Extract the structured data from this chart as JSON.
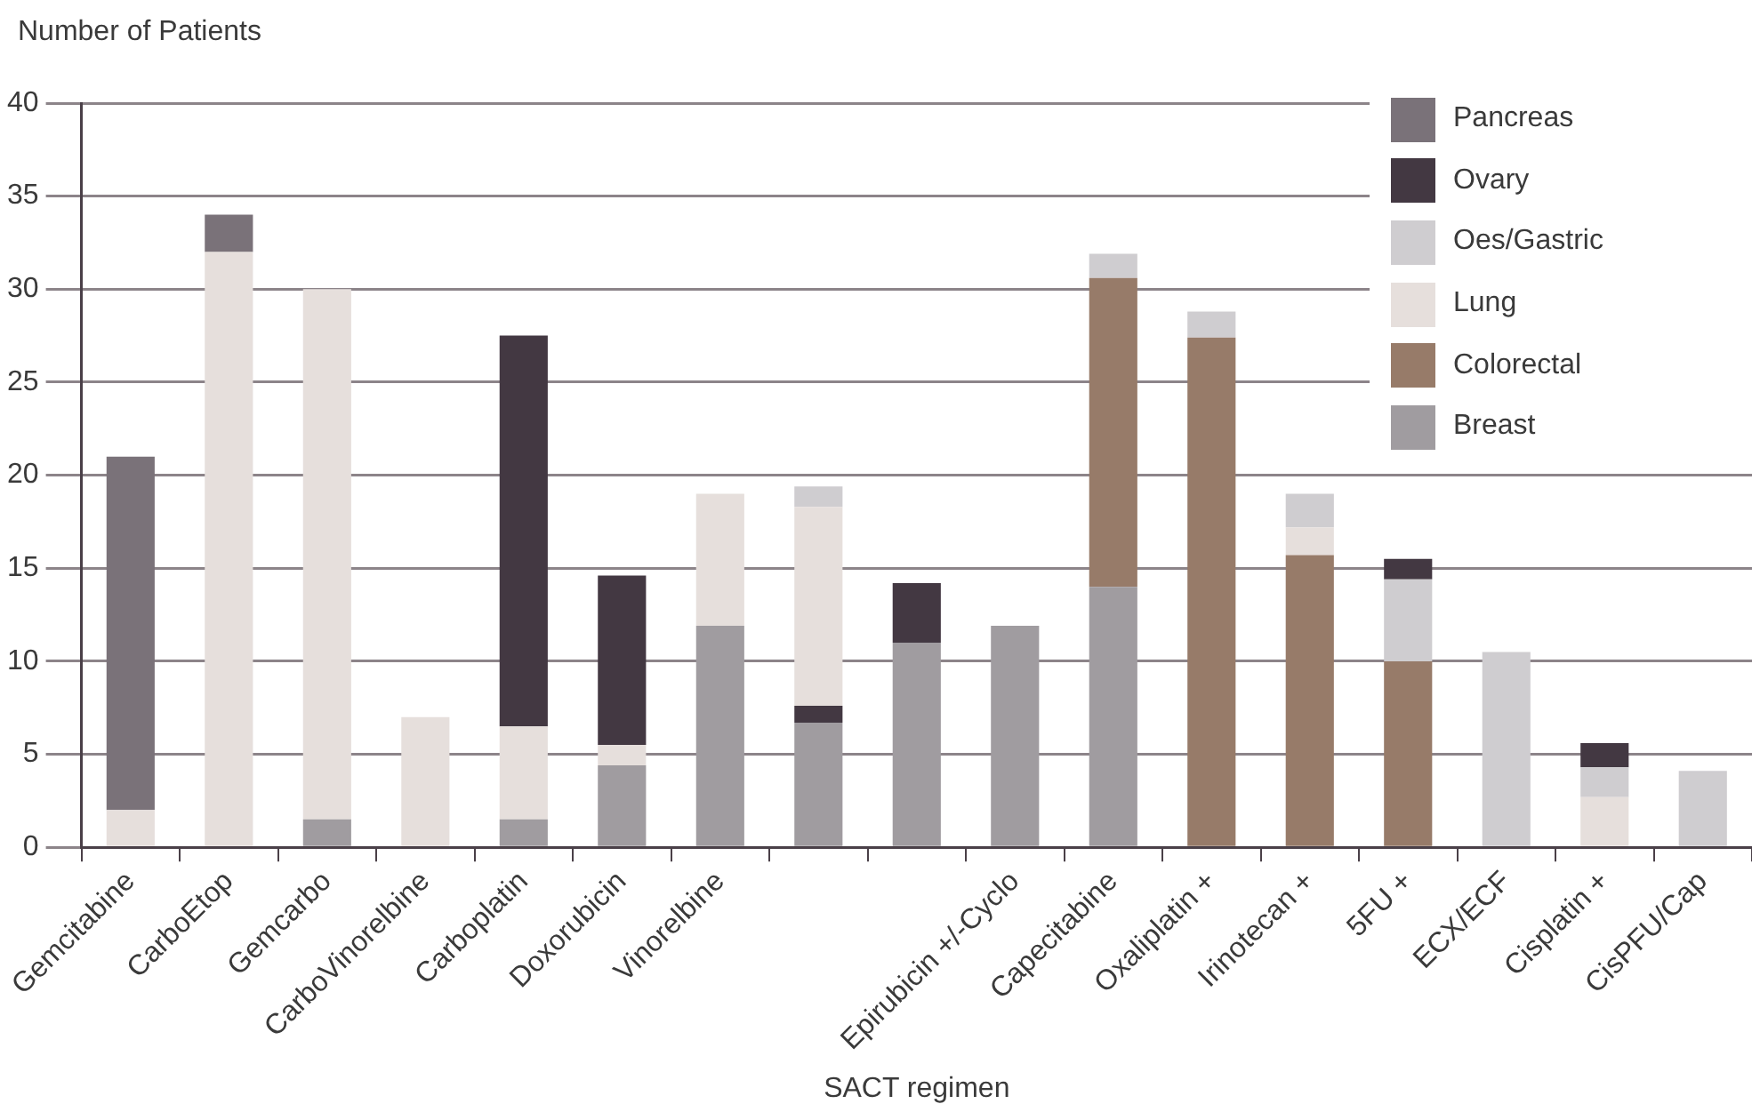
{
  "chart_data": {
    "type": "bar",
    "stacked": true,
    "ylabel": "Number of Patients",
    "xlabel": "SACT regimen",
    "categories": [
      "Gemcitabine",
      "CarboEtop",
      "Gemcarbo",
      "CarboVinorelbine",
      "Carboplatin",
      "Doxorubicin",
      "Vinorelbine",
      null,
      null,
      "Epirubicin +/-Cyclo",
      "Capecitabine",
      "Oxaliplatin +",
      "Irinotecan +",
      "5FU +",
      "ECX/ECF",
      "Cisplatin +",
      "CisPFU/Cap"
    ],
    "ylim": [
      0,
      40
    ],
    "yticks": [
      0,
      5,
      10,
      15,
      20,
      25,
      30,
      35,
      40
    ],
    "grid": "y",
    "legend": "top right",
    "series": [
      {
        "name": "Breast",
        "color": "#a09ca0",
        "values": [
          null,
          null,
          1.5,
          null,
          1.5,
          4.4,
          11.9,
          6.7,
          11,
          11.9,
          14,
          null,
          null,
          null,
          null,
          null,
          null
        ]
      },
      {
        "color": "#433842",
        "values": [
          null,
          null,
          null,
          null,
          null,
          null,
          null,
          0.9,
          null,
          null,
          null,
          null,
          null,
          null,
          null,
          null,
          null
        ]
      },
      {
        "name": "Colorectal",
        "color": "#977b69",
        "values": [
          null,
          null,
          null,
          null,
          null,
          null,
          null,
          null,
          null,
          null,
          16.6,
          27.4,
          15.7,
          10,
          null,
          null,
          null
        ]
      },
      {
        "name": "Lung",
        "color": "#e6dfdc",
        "values": [
          2,
          32,
          28.5,
          7,
          5,
          1.1,
          7.1,
          10.7,
          null,
          null,
          null,
          null,
          1.5,
          null,
          null,
          2.7,
          null
        ]
      },
      {
        "name": "Oes/Gastric",
        "color": "#cfcdd0",
        "values": [
          null,
          null,
          null,
          null,
          null,
          null,
          null,
          1.1,
          null,
          null,
          1.3,
          1.4,
          1.8,
          4.4,
          10.5,
          1.6,
          4.1
        ]
      },
      {
        "name": "Ovary",
        "color": "#433842",
        "values": [
          null,
          null,
          null,
          null,
          21,
          9.1,
          null,
          null,
          3.2,
          null,
          null,
          null,
          null,
          1.1,
          null,
          1.3,
          null
        ]
      },
      {
        "name": "Pancreas",
        "color": "#7a7279",
        "values": [
          19,
          2,
          null,
          null,
          null,
          null,
          null,
          null,
          null,
          null,
          null,
          null,
          null,
          null,
          null,
          null,
          null
        ]
      }
    ]
  }
}
